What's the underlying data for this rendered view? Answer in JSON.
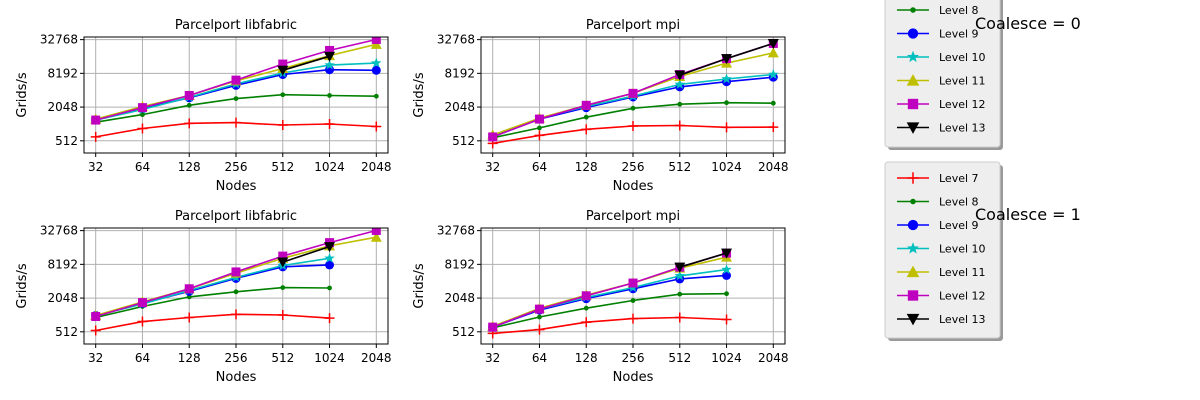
{
  "chart_data": [
    {
      "type": "line",
      "title": "Parcelport libfabric",
      "xlabel": "Nodes",
      "ylabel": "Grids/s",
      "x": [
        32,
        64,
        128,
        256,
        512,
        1024,
        2048
      ],
      "xscale": "log2",
      "yscale": "log2",
      "yticks": [
        512,
        2048,
        8192,
        32768
      ],
      "grid": true,
      "series": [
        {
          "name": "Level 7",
          "values": [
            600,
            850,
            1050,
            1080,
            980,
            1020,
            920
          ]
        },
        {
          "name": "Level 8",
          "values": [
            1100,
            1500,
            2200,
            2900,
            3400,
            3300,
            3200
          ]
        },
        {
          "name": "Level 9",
          "values": [
            1200,
            1950,
            3000,
            5000,
            7800,
            9500,
            9300
          ]
        },
        {
          "name": "Level 10",
          "values": [
            1200,
            1850,
            3050,
            5300,
            8300,
            11500,
            12500
          ]
        },
        {
          "name": "Level 11",
          "values": [
            1250,
            2100,
            3300,
            6000,
            10000,
            17000,
            27000
          ]
        },
        {
          "name": "Level 12",
          "values": [
            1200,
            2000,
            3300,
            6200,
            12000,
            21000,
            33000
          ]
        },
        {
          "name": "Level 13",
          "values": [
            null,
            null,
            null,
            null,
            9300,
            16500,
            null
          ]
        }
      ]
    },
    {
      "type": "line",
      "title": "Parcelport mpi",
      "xlabel": "Nodes",
      "ylabel": "Grids/s",
      "x": [
        32,
        64,
        128,
        256,
        512,
        1024,
        2048
      ],
      "xscale": "log2",
      "yscale": "log2",
      "yticks": [
        512,
        2048,
        8192,
        32768
      ],
      "grid": true,
      "series": [
        {
          "name": "Level 7",
          "values": [
            460,
            640,
            820,
            940,
            960,
            890,
            900
          ]
        },
        {
          "name": "Level 8",
          "values": [
            580,
            870,
            1350,
            1950,
            2300,
            2450,
            2400
          ]
        },
        {
          "name": "Level 9",
          "values": [
            600,
            1250,
            2000,
            3100,
            4700,
            5800,
            7000
          ]
        },
        {
          "name": "Level 10",
          "values": [
            620,
            1300,
            2100,
            3200,
            5200,
            6500,
            7800
          ]
        },
        {
          "name": "Level 11",
          "values": [
            650,
            1300,
            2200,
            3600,
            7200,
            12500,
            19000
          ]
        },
        {
          "name": "Level 12",
          "values": [
            600,
            1250,
            2200,
            3600,
            7800,
            15000,
            28000
          ]
        },
        {
          "name": "Level 13",
          "values": [
            null,
            null,
            null,
            null,
            7600,
            15000,
            28000
          ]
        }
      ]
    },
    {
      "type": "line",
      "title": "Parcelport libfabric",
      "xlabel": "Nodes",
      "ylabel": "Grids/s",
      "x": [
        32,
        64,
        128,
        256,
        512,
        1024,
        2048
      ],
      "xscale": "log2",
      "yscale": "log2",
      "yticks": [
        512,
        2048,
        8192,
        32768
      ],
      "grid": true,
      "series": [
        {
          "name": "Level 7",
          "values": [
            540,
            780,
            920,
            1050,
            1020,
            900,
            null
          ]
        },
        {
          "name": "Level 8",
          "values": [
            920,
            1450,
            2150,
            2650,
            3150,
            3100,
            null
          ]
        },
        {
          "name": "Level 9",
          "values": [
            1000,
            1650,
            2700,
            4600,
            7400,
            8000,
            null
          ]
        },
        {
          "name": "Level 10",
          "values": [
            1000,
            1600,
            2800,
            4800,
            7800,
            10500,
            null
          ]
        },
        {
          "name": "Level 11",
          "values": [
            1000,
            1750,
            3000,
            5700,
            10500,
            17500,
            25000
          ]
        },
        {
          "name": "Level 12",
          "values": [
            960,
            1700,
            3000,
            6000,
            11500,
            20000,
            33000
          ]
        },
        {
          "name": "Level 13",
          "values": [
            null,
            null,
            null,
            null,
            9000,
            17000,
            null
          ]
        }
      ]
    },
    {
      "type": "line",
      "title": "Parcelport mpi",
      "xlabel": "Nodes",
      "ylabel": "Grids/s",
      "x": [
        32,
        64,
        128,
        256,
        512,
        1024,
        2048
      ],
      "xscale": "log2",
      "yscale": "log2",
      "yticks": [
        512,
        2048,
        8192,
        32768
      ],
      "grid": true,
      "series": [
        {
          "name": "Level 7",
          "values": [
            480,
            560,
            760,
            880,
            920,
            850,
            null
          ]
        },
        {
          "name": "Level 8",
          "values": [
            600,
            940,
            1350,
            1850,
            2400,
            2450,
            null
          ]
        },
        {
          "name": "Level 9",
          "values": [
            620,
            1250,
            2000,
            3000,
            4500,
            5200,
            null
          ]
        },
        {
          "name": "Level 10",
          "values": [
            620,
            1300,
            2100,
            3150,
            5100,
            6600,
            null
          ]
        },
        {
          "name": "Level 11",
          "values": [
            640,
            1350,
            2300,
            3800,
            7000,
            11000,
            null
          ]
        },
        {
          "name": "Level 12",
          "values": [
            620,
            1300,
            2250,
            3800,
            7300,
            13000,
            null
          ]
        },
        {
          "name": "Level 13",
          "values": [
            null,
            null,
            null,
            null,
            7300,
            13000,
            null
          ]
        }
      ]
    }
  ],
  "legends": [
    {
      "group_label": "Coalesce = 0",
      "entries": [
        "Level 8",
        "Level 9",
        "Level 10",
        "Level 11",
        "Level 12",
        "Level 13"
      ]
    },
    {
      "group_label": "Coalesce = 1",
      "entries": [
        "Level 7",
        "Level 8",
        "Level 9",
        "Level 10",
        "Level 11",
        "Level 12",
        "Level 13"
      ]
    }
  ],
  "series_style": {
    "Level 7": {
      "color": "#ff0000",
      "marker": "plus"
    },
    "Level 8": {
      "color": "#008000",
      "marker": "point"
    },
    "Level 9": {
      "color": "#0000ff",
      "marker": "circle"
    },
    "Level 10": {
      "color": "#00bfbf",
      "marker": "star"
    },
    "Level 11": {
      "color": "#bfbf00",
      "marker": "triangle-up"
    },
    "Level 12": {
      "color": "#bf00bf",
      "marker": "square"
    },
    "Level 13": {
      "color": "#000000",
      "marker": "triangle-down"
    }
  }
}
